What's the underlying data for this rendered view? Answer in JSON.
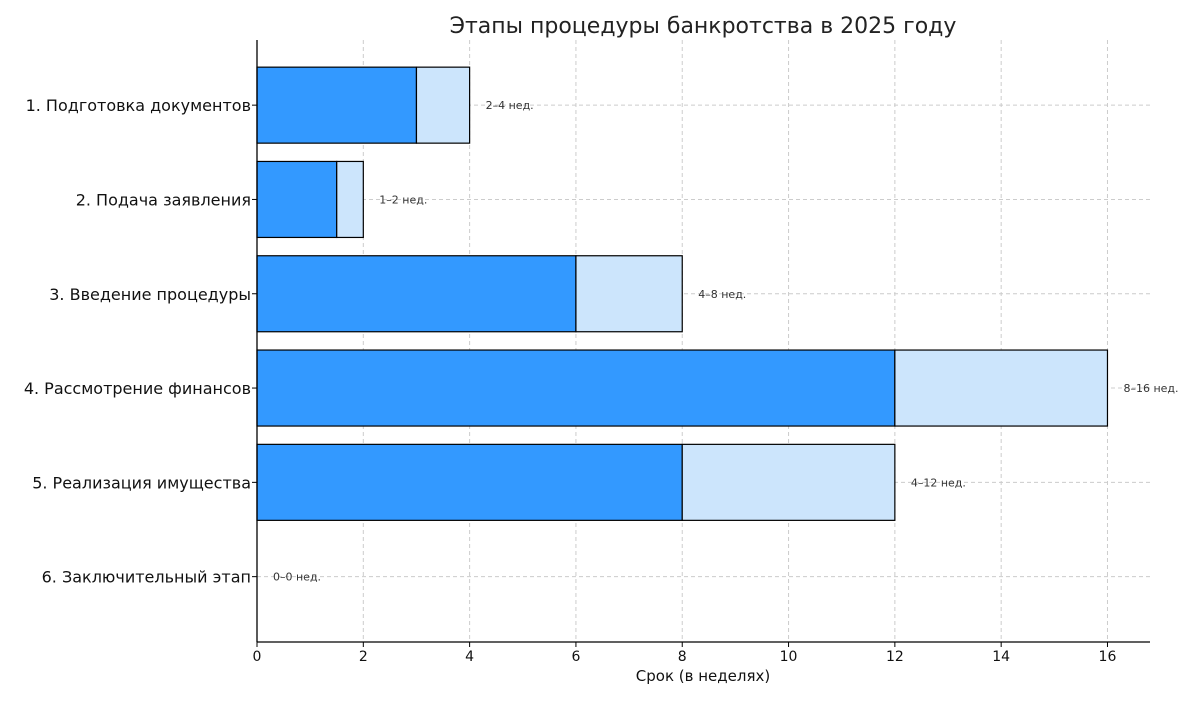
{
  "chart_data": {
    "type": "bar",
    "orientation": "horizontal",
    "stacked": true,
    "title": "Этапы процедуры банкротства в 2025 году",
    "xlabel": "Срок (в неделях)",
    "ylabel": "",
    "xlim": [
      0,
      16.8
    ],
    "xticks": [
      0,
      2,
      4,
      6,
      8,
      10,
      12,
      14,
      16
    ],
    "grid": true,
    "categories": [
      "1. Подготовка документов",
      "2. Подача заявления",
      "3. Введение процедуры",
      "4. Рассмотрение финансов",
      "5. Реализация имущества",
      "6. Заключительный этап"
    ],
    "series": [
      {
        "values": [
          3,
          1.5,
          6,
          12,
          8,
          0
        ],
        "color": "#3399ff"
      },
      {
        "values": [
          1,
          0.5,
          2,
          4,
          4,
          0
        ],
        "color": "#cce5fc"
      }
    ],
    "data_labels": [
      "2–4 нед.",
      "1–2 нед.",
      "4–8 нед.",
      "8–16 нед.",
      "4–12 нед.",
      "0–0 нед."
    ]
  }
}
